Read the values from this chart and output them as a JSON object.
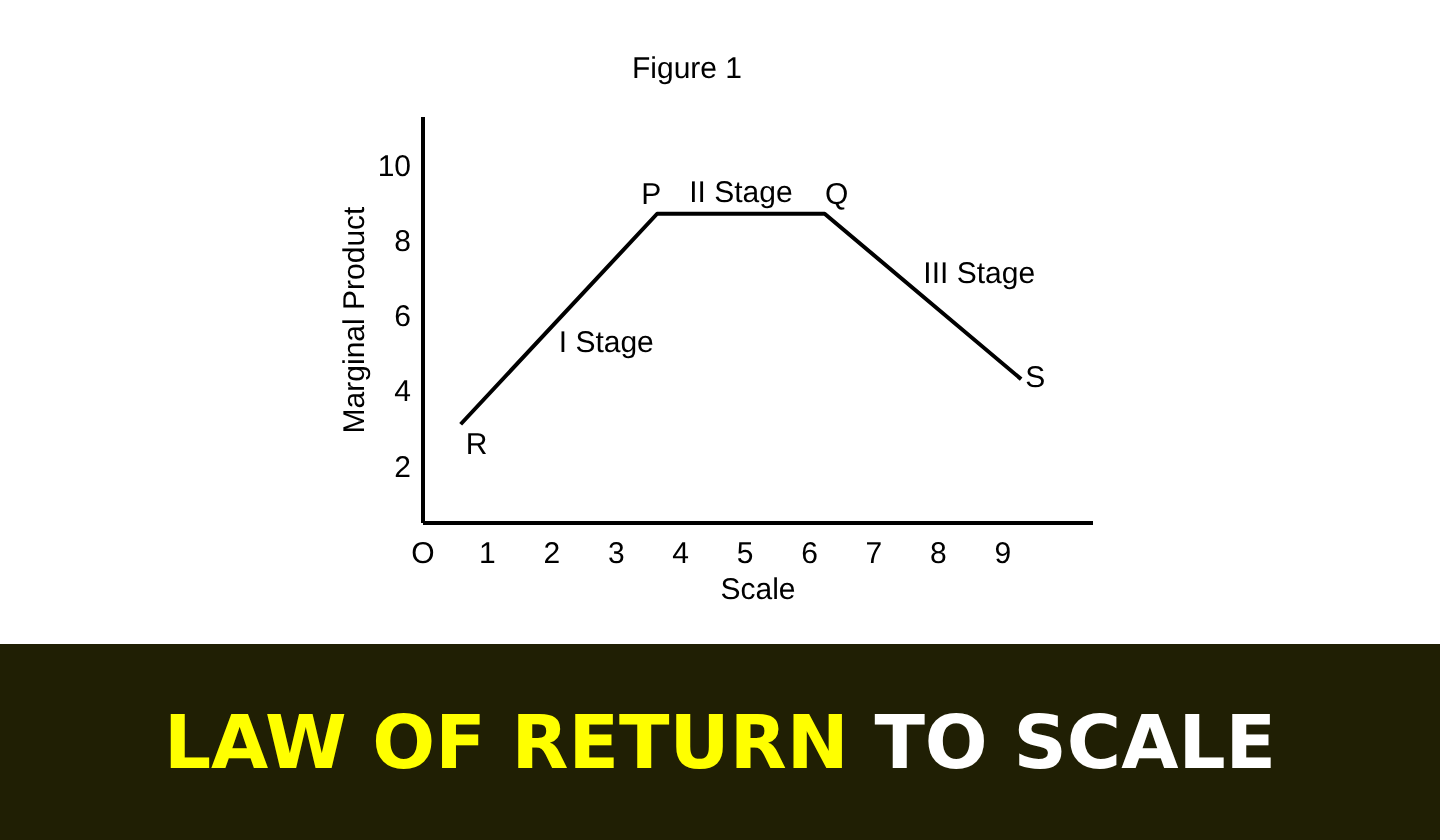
{
  "chart_data": {
    "type": "line",
    "title": "Figure 1",
    "xlabel": "Scale",
    "ylabel": "Marginal Product",
    "x": [
      0.6,
      3.65,
      6.25,
      9.3
    ],
    "series": [
      {
        "color": "#000000",
        "values": [
          3.1,
          8.7,
          8.7,
          4.3
        ]
      }
    ],
    "xlim": [
      0,
      10.4
    ],
    "ylim": [
      0.5,
      11.3
    ],
    "xticks": [
      {
        "value": 0,
        "label": "O"
      },
      1,
      2,
      3,
      4,
      5,
      6,
      7,
      8,
      9
    ],
    "yticks": [
      2,
      4,
      6,
      8,
      10
    ],
    "annotations": [
      {
        "text": "R",
        "x": 0.6,
        "y": 3.1
      },
      {
        "text": "P",
        "x": 3.65,
        "y": 8.7
      },
      {
        "text": "Q",
        "x": 6.25,
        "y": 8.7
      },
      {
        "text": "S",
        "x": 9.3,
        "y": 4.3
      },
      {
        "text": "I Stage",
        "x": 2.06,
        "y": 5.78
      },
      {
        "text": "II Stage",
        "x": 4.95,
        "y": 8.7
      },
      {
        "text": "III Stage",
        "x": 7.72,
        "y": 6.58
      },
      "LAW OF RETURN TO SCALE"
    ]
  }
}
